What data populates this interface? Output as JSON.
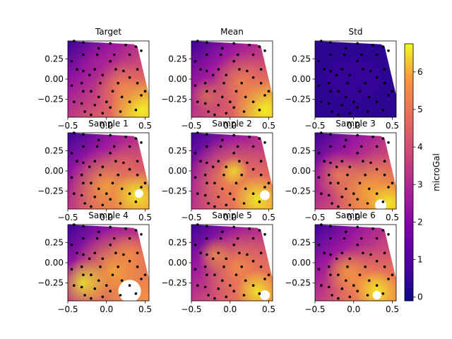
{
  "chart_data": {
    "type": "contour",
    "panels": [
      {
        "title": "Target"
      },
      {
        "title": "Mean"
      },
      {
        "title": "Std"
      },
      {
        "title": "Sample 1"
      },
      {
        "title": "Sample 2"
      },
      {
        "title": "Sample 3"
      },
      {
        "title": "Sample 4"
      },
      {
        "title": "Sample 5"
      },
      {
        "title": "Sample 6"
      }
    ],
    "x_ticks": [
      "−0.5",
      "0.0",
      "0.5"
    ],
    "y_ticks": [
      "0.25",
      "0.00",
      "−0.25"
    ],
    "xlim": [
      -0.5,
      0.55
    ],
    "ylim": [
      -0.47,
      0.47
    ],
    "colorbar": {
      "label": "microGal",
      "range": [
        -0.1,
        6.75
      ],
      "ticks": [
        "0",
        "1",
        "2",
        "3",
        "4",
        "5",
        "6"
      ],
      "colormap": "plasma"
    },
    "stations": [
      [
        -0.42,
        0.47
      ],
      [
        -0.3,
        0.45
      ],
      [
        -0.1,
        0.38
      ],
      [
        0.05,
        0.44
      ],
      [
        0.25,
        0.42
      ],
      [
        0.38,
        0.4
      ],
      [
        0.45,
        0.35
      ],
      [
        -0.3,
        0.3
      ],
      [
        -0.12,
        0.3
      ],
      [
        0.1,
        0.3
      ],
      [
        0.3,
        0.3
      ],
      [
        0.05,
        0.22
      ],
      [
        -0.45,
        0.22
      ],
      [
        -0.38,
        0.12
      ],
      [
        -0.3,
        0.1
      ],
      [
        -0.15,
        0.12
      ],
      [
        0.12,
        0.12
      ],
      [
        0.22,
        0.1
      ],
      [
        0.4,
        0.12
      ],
      [
        -0.22,
        0.05
      ],
      [
        -0.05,
        0.05
      ],
      [
        0.3,
        0.02
      ],
      [
        -0.45,
        -0.08
      ],
      [
        -0.32,
        -0.05
      ],
      [
        -0.08,
        -0.05
      ],
      [
        0.15,
        -0.05
      ],
      [
        0.4,
        -0.05
      ],
      [
        -0.3,
        -0.15
      ],
      [
        -0.2,
        -0.15
      ],
      [
        0.08,
        -0.15
      ],
      [
        0.5,
        -0.15
      ],
      [
        -0.1,
        -0.22
      ],
      [
        0.2,
        -0.22
      ],
      [
        -0.42,
        -0.28
      ],
      [
        -0.32,
        -0.3
      ],
      [
        0.3,
        -0.28
      ],
      [
        -0.15,
        -0.32
      ],
      [
        0.05,
        -0.35
      ],
      [
        -0.28,
        -0.4
      ],
      [
        -0.05,
        -0.42
      ],
      [
        0.18,
        -0.4
      ],
      [
        0.38,
        -0.38
      ],
      [
        -0.2,
        -0.44
      ],
      [
        0.45,
        -0.2
      ],
      [
        0.0,
        -0.28
      ]
    ]
  }
}
